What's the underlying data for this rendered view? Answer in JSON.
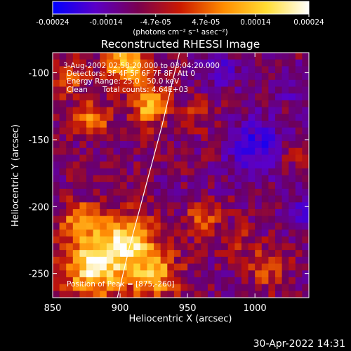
{
  "chart_data": {
    "type": "heatmap",
    "title": "Reconstructed RHESSI Image",
    "xlabel": "Heliocentric X (arcsec)",
    "ylabel": "Heliocentric Y (arcsec)",
    "xlim": [
      850,
      1040
    ],
    "ylim": [
      -268,
      -85
    ],
    "xticks": [
      850,
      900,
      950,
      1000
    ],
    "xtick_labels": [
      "850",
      "900",
      "950",
      "1000"
    ],
    "yticks": [
      -100,
      -150,
      -200,
      -250
    ],
    "ytick_labels": [
      "-100",
      "-150",
      "-200",
      "-250"
    ],
    "colorbar": {
      "min": -0.00024,
      "max": 0.00024,
      "ticks": [
        -0.00024,
        -0.00014,
        -4.7e-05,
        4.7e-05,
        0.00014,
        0.00024
      ],
      "tick_labels": [
        "-0.00024",
        "-0.00014",
        "-4.7e-05",
        "4.7e-05",
        "0.00014",
        "0.00024"
      ],
      "units": "(photons cm⁻² s⁻¹ asec⁻²)",
      "colors": [
        "#0000ff",
        "#5a00c8",
        "#7a0050",
        "#cc1a00",
        "#ff8c00",
        "#ffdd33",
        "#ffffff"
      ]
    },
    "annotations": {
      "time_range": "3-Aug-2002 02:58:20.000 to 03:04:20.000",
      "detectors": "Detectors: 3F 4F 5F 6F 7F 8F, Att 0",
      "energy_range": "Energy Range: 25.0 - 50.0 keV",
      "algorithm": "Clean",
      "total_counts": "Total counts: 4.64E+03",
      "peak_position": "Position of Peak = [875,-260]"
    },
    "limb_curve": {
      "color": "#ffffff",
      "points": [
        [
          944,
          -85
        ],
        [
          938,
          -110
        ],
        [
          931,
          -140
        ],
        [
          923,
          -170
        ],
        [
          915,
          -200
        ],
        [
          907,
          -230
        ],
        [
          898,
          -268
        ]
      ]
    },
    "intensity_grid": {
      "grid_size": [
        38,
        36
      ],
      "bright_regions": [
        {
          "x": 880,
          "y": -245,
          "amplitude": 1.0,
          "sigma": 16
        },
        {
          "x": 905,
          "y": -225,
          "amplitude": 0.85,
          "sigma": 14
        },
        {
          "x": 925,
          "y": -250,
          "amplitude": 0.75,
          "sigma": 13
        },
        {
          "x": 870,
          "y": -210,
          "amplitude": 0.6,
          "sigma": 10
        },
        {
          "x": 905,
          "y": -95,
          "amplitude": 0.9,
          "sigma": 11
        },
        {
          "x": 922,
          "y": -125,
          "amplitude": 0.75,
          "sigma": 10
        },
        {
          "x": 880,
          "y": -135,
          "amplitude": 0.65,
          "sigma": 9
        },
        {
          "x": 860,
          "y": -105,
          "amplitude": 0.5,
          "sigma": 9
        },
        {
          "x": 960,
          "y": -210,
          "amplitude": 0.45,
          "sigma": 9
        },
        {
          "x": 1010,
          "y": -245,
          "amplitude": 0.45,
          "sigma": 10
        },
        {
          "x": 985,
          "y": -225,
          "amplitude": 0.35,
          "sigma": 8
        },
        {
          "x": 1030,
          "y": -160,
          "amplitude": 0.3,
          "sigma": 7
        },
        {
          "x": 960,
          "y": -130,
          "amplitude": 0.3,
          "sigma": 8
        }
      ],
      "dark_regions": [
        {
          "x": 1000,
          "y": -155,
          "amplitude": -0.55,
          "sigma": 14
        },
        {
          "x": 975,
          "y": -100,
          "amplitude": -0.35,
          "sigma": 10
        },
        {
          "x": 1035,
          "y": -205,
          "amplitude": -0.3,
          "sigma": 9
        },
        {
          "x": 1025,
          "y": -110,
          "amplitude": -0.3,
          "sigma": 9
        }
      ]
    }
  },
  "footer": {
    "timestamp": "30-Apr-2022 14:31"
  }
}
